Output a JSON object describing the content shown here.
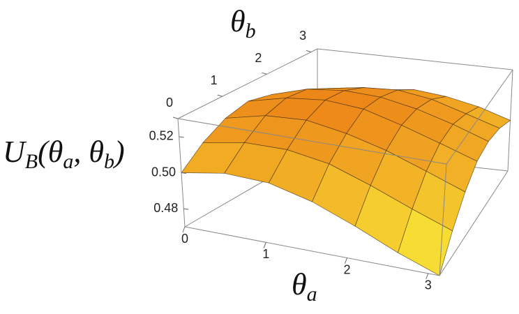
{
  "chart_data": {
    "type": "surface",
    "xlabel": [
      "θ",
      "a"
    ],
    "ylabel": [
      "θ",
      "b"
    ],
    "zlabel": [
      "U",
      "B",
      "(θ",
      "a",
      ", θ",
      "b",
      ")"
    ],
    "x": [
      0,
      0.52,
      1.05,
      1.57,
      2.09,
      2.62,
      3.14
    ],
    "y": [
      0,
      0.52,
      1.05,
      1.57,
      2.09,
      2.62,
      3.14
    ],
    "z": [
      [
        0.5,
        0.51,
        0.517,
        0.52,
        0.517,
        0.51,
        0.5
      ],
      [
        0.504,
        0.514,
        0.522,
        0.525,
        0.523,
        0.516,
        0.506
      ],
      [
        0.503,
        0.514,
        0.523,
        0.527,
        0.525,
        0.519,
        0.51
      ],
      [
        0.497,
        0.51,
        0.519,
        0.525,
        0.524,
        0.52,
        0.512
      ],
      [
        0.488,
        0.502,
        0.513,
        0.519,
        0.52,
        0.517,
        0.51
      ],
      [
        0.478,
        0.493,
        0.505,
        0.512,
        0.514,
        0.511,
        0.506
      ],
      [
        0.47,
        0.485,
        0.497,
        0.505,
        0.507,
        0.505,
        0.5
      ]
    ],
    "xlim": [
      0,
      3.14
    ],
    "ylim": [
      0,
      3.14
    ],
    "zlim": [
      0.47,
      0.53
    ],
    "xticks": [
      0,
      1,
      2,
      3
    ],
    "yticks": [
      0,
      1,
      2,
      3
    ],
    "zticks": [
      0.48,
      {
        "value": 0.5,
        "label": "0.50"
      },
      0.52
    ],
    "colormap": [
      "#f7dc34",
      "#ec8618"
    ],
    "mesh_color": "#3a2a10"
  }
}
